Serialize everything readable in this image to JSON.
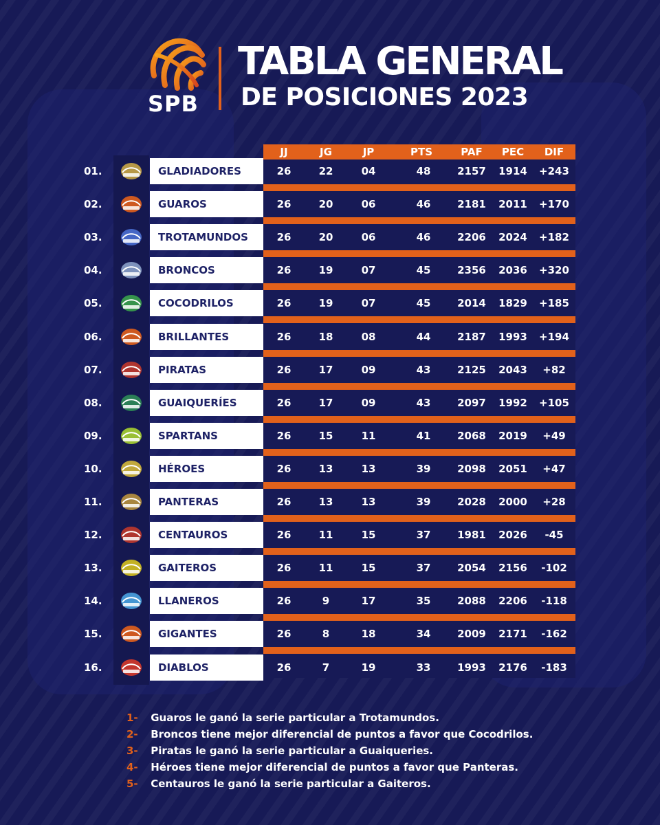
{
  "brand": {
    "logo_text": "SPB",
    "accent_color": "#e2611b",
    "background_color": "#171a56"
  },
  "header": {
    "title_line1": "TABLA GENERAL",
    "title_line2": "DE POSICIONES 2023"
  },
  "table": {
    "columns": [
      "JJ",
      "JG",
      "JP",
      "PTS",
      "PAF",
      "PEC",
      "DIF"
    ],
    "rows": [
      {
        "pos": "01.",
        "team": "GLADIADORES",
        "logo": "gladiadores-logo-icon",
        "jj": "26",
        "jg": "22",
        "jp": "04",
        "pts": "48",
        "paf": "2157",
        "pec": "1914",
        "dif": "+243"
      },
      {
        "pos": "02.",
        "team": "GUAROS",
        "logo": "guaros-logo-icon",
        "jj": "26",
        "jg": "20",
        "jp": "06",
        "pts": "46",
        "paf": "2181",
        "pec": "2011",
        "dif": "+170"
      },
      {
        "pos": "03.",
        "team": "TROTAMUNDOS",
        "logo": "trotamundos-logo-icon",
        "jj": "26",
        "jg": "20",
        "jp": "06",
        "pts": "46",
        "paf": "2206",
        "pec": "2024",
        "dif": "+182"
      },
      {
        "pos": "04.",
        "team": "BRONCOS",
        "logo": "broncos-logo-icon",
        "jj": "26",
        "jg": "19",
        "jp": "07",
        "pts": "45",
        "paf": "2356",
        "pec": "2036",
        "dif": "+320"
      },
      {
        "pos": "05.",
        "team": "COCODRILOS",
        "logo": "cocodrilos-logo-icon",
        "jj": "26",
        "jg": "19",
        "jp": "07",
        "pts": "45",
        "paf": "2014",
        "pec": "1829",
        "dif": "+185"
      },
      {
        "pos": "06.",
        "team": "BRILLANTES",
        "logo": "brillantes-logo-icon",
        "jj": "26",
        "jg": "18",
        "jp": "08",
        "pts": "44",
        "paf": "2187",
        "pec": "1993",
        "dif": "+194"
      },
      {
        "pos": "07.",
        "team": "PIRATAS",
        "logo": "piratas-logo-icon",
        "jj": "26",
        "jg": "17",
        "jp": "09",
        "pts": "43",
        "paf": "2125",
        "pec": "2043",
        "dif": "+82"
      },
      {
        "pos": "08.",
        "team": "GUAIQUERÍES",
        "logo": "guaiqueries-logo-icon",
        "jj": "26",
        "jg": "17",
        "jp": "09",
        "pts": "43",
        "paf": "2097",
        "pec": "1992",
        "dif": "+105"
      },
      {
        "pos": "09.",
        "team": "SPARTANS",
        "logo": "spartans-logo-icon",
        "jj": "26",
        "jg": "15",
        "jp": "11",
        "pts": "41",
        "paf": "2068",
        "pec": "2019",
        "dif": "+49"
      },
      {
        "pos": "10.",
        "team": "HÉROES",
        "logo": "heroes-logo-icon",
        "jj": "26",
        "jg": "13",
        "jp": "13",
        "pts": "39",
        "paf": "2098",
        "pec": "2051",
        "dif": "+47"
      },
      {
        "pos": "11.",
        "team": "PANTERAS",
        "logo": "panteras-logo-icon",
        "jj": "26",
        "jg": "13",
        "jp": "13",
        "pts": "39",
        "paf": "2028",
        "pec": "2000",
        "dif": "+28"
      },
      {
        "pos": "12.",
        "team": "CENTAUROS",
        "logo": "centauros-logo-icon",
        "jj": "26",
        "jg": "11",
        "jp": "15",
        "pts": "37",
        "paf": "1981",
        "pec": "2026",
        "dif": "-45"
      },
      {
        "pos": "13.",
        "team": "GAITEROS",
        "logo": "gaiteros-logo-icon",
        "jj": "26",
        "jg": "11",
        "jp": "15",
        "pts": "37",
        "paf": "2054",
        "pec": "2156",
        "dif": "-102"
      },
      {
        "pos": "14.",
        "team": "LLANEROS",
        "logo": "llaneros-logo-icon",
        "jj": "26",
        "jg": "9",
        "jp": "17",
        "pts": "35",
        "paf": "2088",
        "pec": "2206",
        "dif": "-118"
      },
      {
        "pos": "15.",
        "team": "GIGANTES",
        "logo": "gigantes-logo-icon",
        "jj": "26",
        "jg": "8",
        "jp": "18",
        "pts": "34",
        "paf": "2009",
        "pec": "2171",
        "dif": "-162"
      },
      {
        "pos": "16.",
        "team": "DIABLOS",
        "logo": "diablos-logo-icon",
        "jj": "26",
        "jg": "7",
        "jp": "19",
        "pts": "33",
        "paf": "1993",
        "pec": "2176",
        "dif": "-183"
      }
    ]
  },
  "notes": [
    {
      "num": "1-",
      "text": "Guaros le ganó la serie particular a Trotamundos."
    },
    {
      "num": "2-",
      "text": "Broncos tiene mejor diferencial de puntos a favor que Cocodrilos."
    },
    {
      "num": "3-",
      "text": "Piratas le ganó la serie particular a Guaiqueries."
    },
    {
      "num": "4-",
      "text": "Héroes tiene mejor diferencial de puntos a favor que Panteras."
    },
    {
      "num": "5-",
      "text": "Centauros le ganó la serie particular a Gaiteros."
    }
  ]
}
